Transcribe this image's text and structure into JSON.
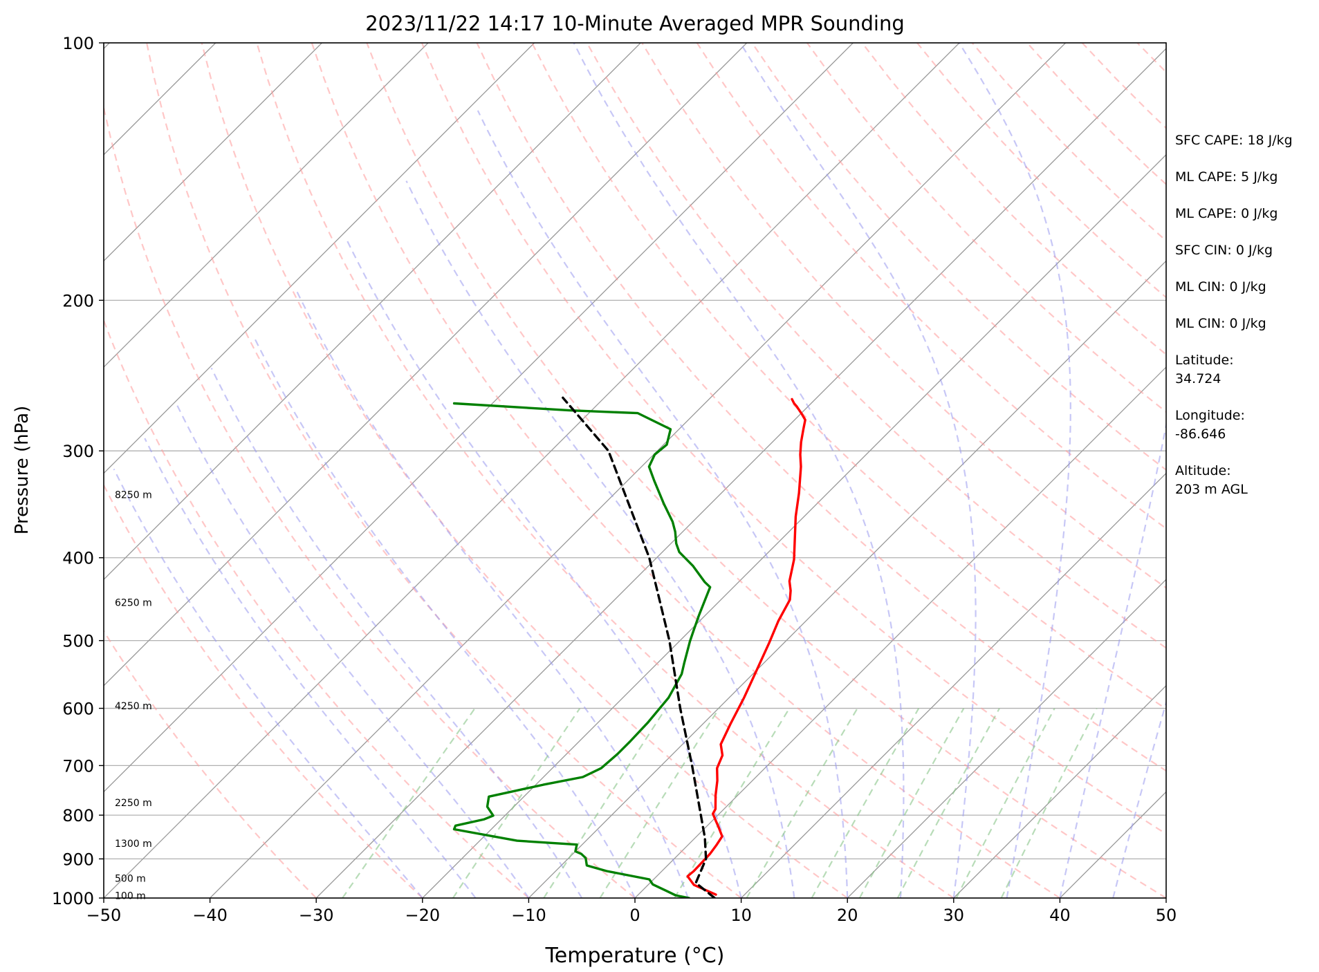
{
  "chart_data": {
    "type": "skew-t",
    "title": "2023/11/22 14:17 10-Minute Averaged MPR Sounding",
    "xlabel": "Temperature (°C)",
    "ylabel": "Pressure (hPa)",
    "xlim": [
      -50,
      50
    ],
    "ylim": [
      1000,
      100
    ],
    "y_scale": "log",
    "grid": true,
    "x_ticks": [
      "−50",
      "−40",
      "−30",
      "−20",
      "−10",
      "0",
      "10",
      "20",
      "30",
      "40",
      "50"
    ],
    "y_ticks": [
      "100",
      "200",
      "300",
      "400",
      "500",
      "600",
      "700",
      "800",
      "900",
      "1000"
    ],
    "height_labels": [
      {
        "p": 995,
        "text": "100 m"
      },
      {
        "p": 950,
        "text": "500 m"
      },
      {
        "p": 865,
        "text": "1300 m"
      },
      {
        "p": 775,
        "text": "2250 m"
      },
      {
        "p": 597,
        "text": "4250 m"
      },
      {
        "p": 452,
        "text": "6250 m"
      },
      {
        "p": 338,
        "text": "8250 m"
      }
    ],
    "series": [
      {
        "color": "#ff0000",
        "points": [
          [
            991,
            7.3
          ],
          [
            965,
            4.3
          ],
          [
            943,
            2.9
          ],
          [
            930,
            3.0
          ],
          [
            888,
            2.9
          ],
          [
            868,
            2.7
          ],
          [
            847,
            2.4
          ],
          [
            828,
            1.3
          ],
          [
            810,
            0.2
          ],
          [
            797,
            -0.6
          ],
          [
            787,
            -0.8
          ],
          [
            758,
            -2.1
          ],
          [
            729,
            -3.3
          ],
          [
            705,
            -4.5
          ],
          [
            681,
            -5.2
          ],
          [
            661,
            -6.4
          ],
          [
            626,
            -7.4
          ],
          [
            583,
            -8.6
          ],
          [
            553,
            -9.6
          ],
          [
            503,
            -11.4
          ],
          [
            474,
            -12.6
          ],
          [
            448,
            -13.5
          ],
          [
            437,
            -14.3
          ],
          [
            426,
            -15.3
          ],
          [
            402,
            -16.9
          ],
          [
            358,
            -20.8
          ],
          [
            336,
            -22.7
          ],
          [
            313,
            -25.0
          ],
          [
            303,
            -26.2
          ],
          [
            293,
            -27.3
          ],
          [
            283,
            -28.3
          ],
          [
            276,
            -29.0
          ],
          [
            272,
            -29.8
          ],
          [
            266,
            -31.1
          ],
          [
            264,
            -31.6
          ],
          [
            261,
            -32.2
          ]
        ]
      },
      {
        "color": "#008000",
        "points": [
          [
            1000,
            5.1
          ],
          [
            993,
            3.6
          ],
          [
            981,
            2.3
          ],
          [
            964,
            0.4
          ],
          [
            951,
            -0.4
          ],
          [
            930,
            -5.2
          ],
          [
            916,
            -7.6
          ],
          [
            898,
            -8.4
          ],
          [
            888,
            -9.2
          ],
          [
            882,
            -10.0
          ],
          [
            866,
            -10.5
          ],
          [
            857,
            -16.5
          ],
          [
            831,
            -23.5
          ],
          [
            823,
            -23.7
          ],
          [
            809,
            -21.6
          ],
          [
            801,
            -21.1
          ],
          [
            782,
            -22.5
          ],
          [
            761,
            -23.3
          ],
          [
            737,
            -19.3
          ],
          [
            722,
            -16.3
          ],
          [
            705,
            -15.4
          ],
          [
            678,
            -15.2
          ],
          [
            656,
            -15.2
          ],
          [
            624,
            -15.3
          ],
          [
            583,
            -15.7
          ],
          [
            547,
            -16.7
          ],
          [
            531,
            -17.5
          ],
          [
            501,
            -19.0
          ],
          [
            486,
            -19.7
          ],
          [
            467,
            -20.6
          ],
          [
            433,
            -22.2
          ],
          [
            427,
            -23.2
          ],
          [
            409,
            -25.8
          ],
          [
            394,
            -28.4
          ],
          [
            385,
            -29.5
          ],
          [
            373,
            -30.7
          ],
          [
            363,
            -31.9
          ],
          [
            346,
            -34.4
          ],
          [
            325,
            -37.5
          ],
          [
            313,
            -39.3
          ],
          [
            303,
            -39.9
          ],
          [
            295,
            -39.7
          ],
          [
            283,
            -40.8
          ],
          [
            271,
            -45.4
          ],
          [
            269,
            -52.1
          ],
          [
            264,
            -63.6
          ]
        ]
      },
      {
        "color": "#000000",
        "dashed": true,
        "points": [
          [
            1000,
            7.5
          ],
          [
            960,
            4.3
          ],
          [
            900,
            3.0
          ],
          [
            850,
            0.9
          ],
          [
            800,
            -1.6
          ],
          [
            700,
            -7.1
          ],
          [
            600,
            -13.6
          ],
          [
            500,
            -21.0
          ],
          [
            400,
            -30.7
          ],
          [
            300,
            -44.6
          ],
          [
            260,
            -53.9
          ]
        ]
      }
    ]
  },
  "info_panel": {
    "stats": [
      "SFC CAPE: 18 J/kg",
      "ML CAPE: 5 J/kg",
      "ML CAPE: 0 J/kg",
      "SFC CIN: 0 J/kg",
      "ML CIN: 0 J/kg",
      "ML CIN: 0 J/kg"
    ],
    "latitude_label": "Latitude:",
    "latitude_value": "34.724",
    "longitude_label": "Longitude:",
    "longitude_value": "-86.646",
    "altitude_label": "Altitude:",
    "altitude_value": "203 m AGL"
  },
  "colors": {
    "temperature": "#ff0000",
    "dewpoint": "#008000",
    "parcel": "#000000",
    "dry_adiabats": "#ff9999",
    "moist_adiabats": "#9999ee",
    "mixing_ratio": "#88c488",
    "isotherms": "#999999"
  }
}
